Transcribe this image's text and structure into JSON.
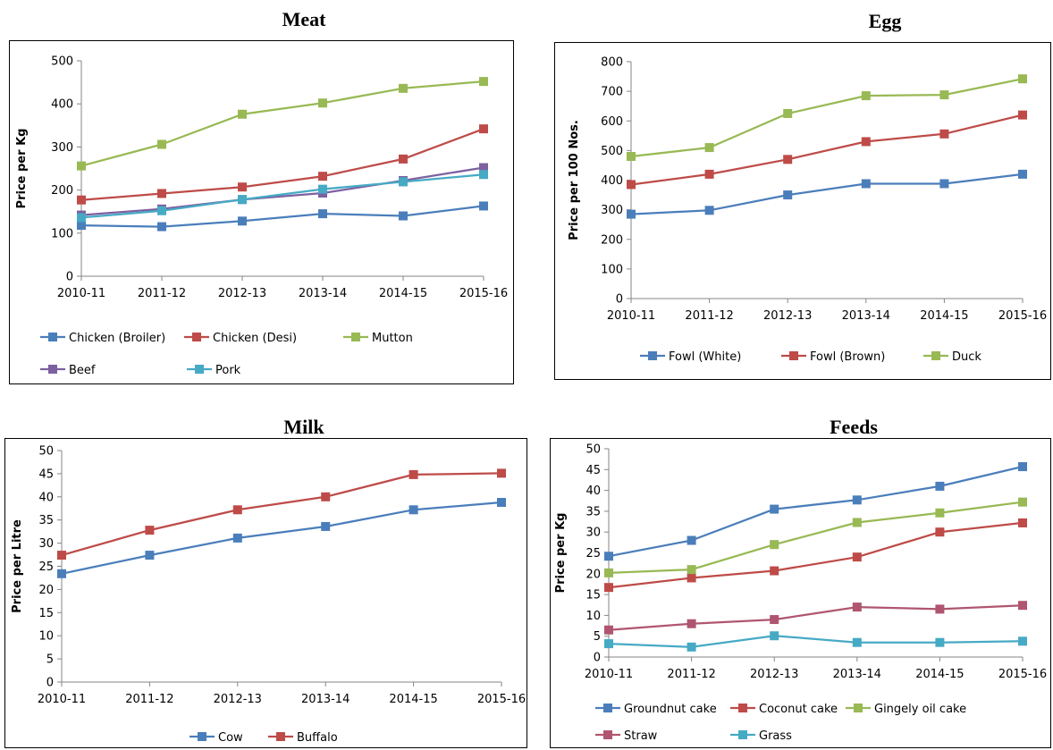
{
  "chart_data": [
    {
      "id": "meat",
      "type": "line",
      "title": "Meat",
      "ylabel": "Price per Kg",
      "categories": [
        "2010-11",
        "2011-12",
        "2012-13",
        "2013-14",
        "2014-15",
        "2015-16"
      ],
      "ylim": [
        0,
        500
      ],
      "yticks": [
        0,
        100,
        200,
        300,
        400,
        500
      ],
      "legend": "bottom",
      "series": [
        {
          "name": "Chicken (Broiler)",
          "color": "#4a7ebb",
          "values": [
            118,
            115,
            128,
            145,
            140,
            163
          ]
        },
        {
          "name": "Chicken (Desi)",
          "color": "#be4b48",
          "values": [
            177,
            192,
            207,
            232,
            272,
            342
          ]
        },
        {
          "name": "Mutton",
          "color": "#98b954",
          "values": [
            256,
            306,
            376,
            402,
            436,
            452
          ]
        },
        {
          "name": "Beef",
          "color": "#7d60a0",
          "values": [
            142,
            156,
            178,
            193,
            222,
            252
          ]
        },
        {
          "name": "Pork",
          "color": "#46aac5",
          "values": [
            136,
            152,
            178,
            202,
            219,
            236
          ]
        }
      ]
    },
    {
      "id": "egg",
      "type": "line",
      "title": "Egg",
      "ylabel": "Price per 100 Nos.",
      "categories": [
        "2010-11",
        "2011-12",
        "2012-13",
        "2013-14",
        "2014-15",
        "2015-16"
      ],
      "ylim": [
        0,
        800
      ],
      "yticks": [
        0,
        100,
        200,
        300,
        400,
        500,
        600,
        700,
        800
      ],
      "legend": "bottom",
      "series": [
        {
          "name": "Fowl (White)",
          "color": "#4a7ebb",
          "values": [
            285,
            298,
            350,
            388,
            388,
            420
          ]
        },
        {
          "name": "Fowl (Brown)",
          "color": "#be4b48",
          "values": [
            385,
            420,
            470,
            530,
            556,
            620
          ]
        },
        {
          "name": "Duck",
          "color": "#98b954",
          "values": [
            480,
            510,
            625,
            685,
            688,
            742
          ]
        }
      ]
    },
    {
      "id": "milk",
      "type": "line",
      "title": "Milk",
      "ylabel": "Price per Litre",
      "categories": [
        "2010-11",
        "2011-12",
        "2012-13",
        "2013-14",
        "2014-15",
        "2015-16"
      ],
      "ylim": [
        0,
        50
      ],
      "yticks": [
        0,
        5,
        10,
        15,
        20,
        25,
        30,
        35,
        40,
        45,
        50
      ],
      "legend": "bottom",
      "series": [
        {
          "name": "Cow",
          "color": "#4a7ebb",
          "values": [
            23.4,
            27.4,
            31.1,
            33.6,
            37.2,
            38.8
          ]
        },
        {
          "name": "Buffalo",
          "color": "#be4b48",
          "values": [
            27.4,
            32.8,
            37.2,
            40.0,
            44.8,
            45.1
          ]
        }
      ]
    },
    {
      "id": "feeds",
      "type": "line",
      "title": "Feeds",
      "ylabel": "Price per Kg",
      "categories": [
        "2010-11",
        "2011-12",
        "2012-13",
        "2013-14",
        "2014-15",
        "2015-16"
      ],
      "ylim": [
        0,
        50
      ],
      "yticks": [
        0,
        5,
        10,
        15,
        20,
        25,
        30,
        35,
        40,
        45,
        50
      ],
      "legend": "bottom",
      "series": [
        {
          "name": "Groundnut cake",
          "color": "#4a7ebb",
          "values": [
            24.2,
            28.0,
            35.5,
            37.7,
            41.0,
            45.7
          ]
        },
        {
          "name": "Coconut cake",
          "color": "#be4b48",
          "values": [
            16.7,
            19.0,
            20.7,
            24.0,
            30.0,
            32.2
          ]
        },
        {
          "name": "Gingely oil cake",
          "color": "#98b954",
          "values": [
            20.2,
            21.0,
            27.0,
            32.3,
            34.6,
            37.2
          ]
        },
        {
          "name": "Straw",
          "color": "#b05570",
          "values": [
            6.5,
            8.0,
            9.0,
            12.0,
            11.5,
            12.4
          ]
        },
        {
          "name": "Grass",
          "color": "#46aac5",
          "values": [
            3.2,
            2.4,
            5.1,
            3.5,
            3.5,
            3.8
          ]
        }
      ]
    }
  ]
}
